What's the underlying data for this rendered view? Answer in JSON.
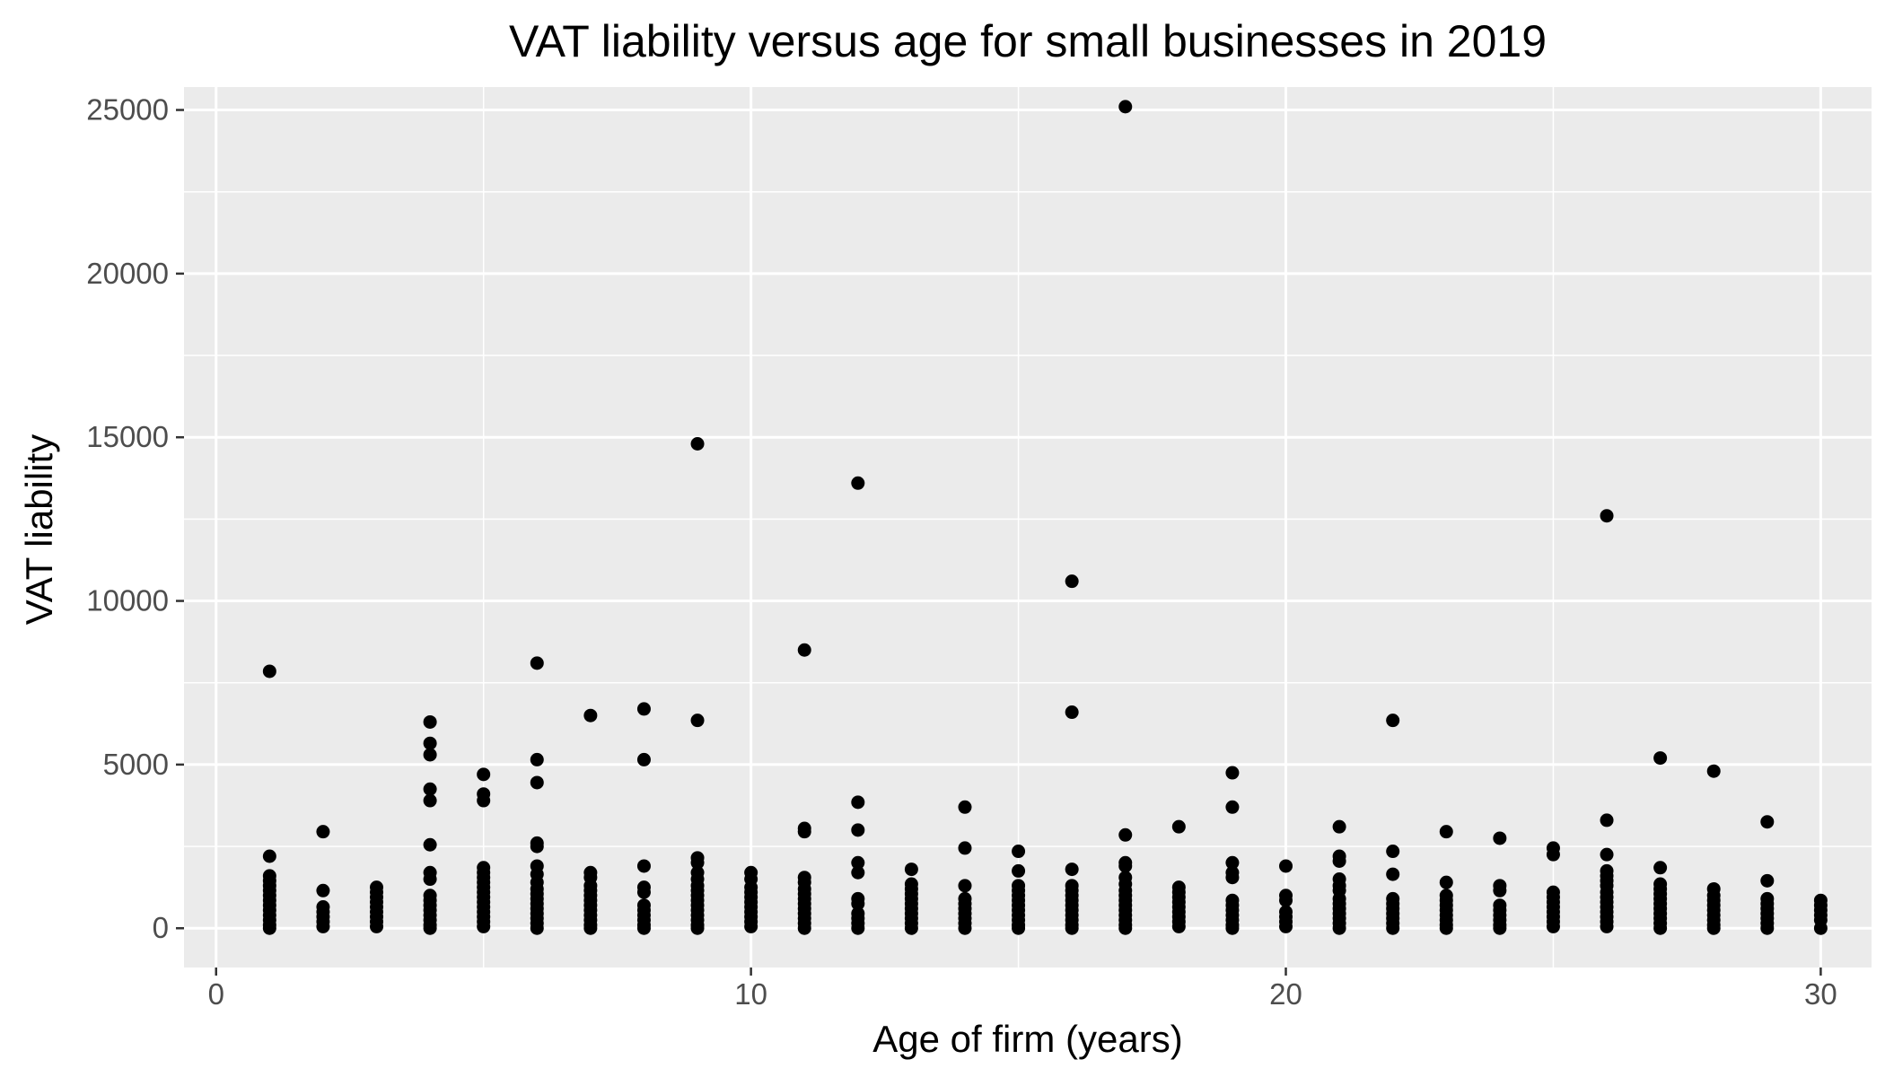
{
  "chart_data": {
    "type": "scatter",
    "title": "VAT liability versus age for small businesses in 2019",
    "xlabel": "Age of firm (years)",
    "ylabel": "VAT liability",
    "xlim": [
      -0.6,
      30.95
    ],
    "ylim": [
      -1200,
      25700
    ],
    "xticks": [
      0,
      10,
      20,
      30
    ],
    "yticks": [
      0,
      5000,
      10000,
      15000,
      20000,
      25000
    ],
    "xtick_labels": [
      "0",
      "10",
      "20",
      "30"
    ],
    "ytick_labels": [
      "0",
      "5000",
      "10000",
      "15000",
      "20000",
      "25000"
    ],
    "grid": true,
    "legend": "none",
    "colors": {
      "panel_background": "#ebebeb",
      "grid": "#ffffff",
      "point": "#000000",
      "tick_label": "#4d4d4d",
      "tick_mark": "#333333"
    },
    "points": [
      {
        "x": 1,
        "y": 7850
      },
      {
        "x": 1,
        "y": 2200
      },
      {
        "x": 1,
        "y": 1600
      },
      {
        "x": 1,
        "y": 1450
      },
      {
        "x": 1,
        "y": 1300
      },
      {
        "x": 1,
        "y": 1150
      },
      {
        "x": 1,
        "y": 1000
      },
      {
        "x": 1,
        "y": 850
      },
      {
        "x": 1,
        "y": 700
      },
      {
        "x": 1,
        "y": 550
      },
      {
        "x": 1,
        "y": 400
      },
      {
        "x": 1,
        "y": 250
      },
      {
        "x": 1,
        "y": 100
      },
      {
        "x": 1,
        "y": 0
      },
      {
        "x": 2,
        "y": 2950
      },
      {
        "x": 2,
        "y": 1150
      },
      {
        "x": 2,
        "y": 650
      },
      {
        "x": 2,
        "y": 500
      },
      {
        "x": 2,
        "y": 350
      },
      {
        "x": 2,
        "y": 200
      },
      {
        "x": 2,
        "y": 50
      },
      {
        "x": 3,
        "y": 1250
      },
      {
        "x": 3,
        "y": 1100
      },
      {
        "x": 3,
        "y": 950
      },
      {
        "x": 3,
        "y": 800
      },
      {
        "x": 3,
        "y": 650
      },
      {
        "x": 3,
        "y": 500
      },
      {
        "x": 3,
        "y": 350
      },
      {
        "x": 3,
        "y": 200
      },
      {
        "x": 3,
        "y": 50
      },
      {
        "x": 4,
        "y": 6300
      },
      {
        "x": 4,
        "y": 5650
      },
      {
        "x": 4,
        "y": 5300
      },
      {
        "x": 4,
        "y": 4250
      },
      {
        "x": 4,
        "y": 3900
      },
      {
        "x": 4,
        "y": 2550
      },
      {
        "x": 4,
        "y": 1700
      },
      {
        "x": 4,
        "y": 1500
      },
      {
        "x": 4,
        "y": 1000
      },
      {
        "x": 4,
        "y": 850
      },
      {
        "x": 4,
        "y": 700
      },
      {
        "x": 4,
        "y": 550
      },
      {
        "x": 4,
        "y": 400
      },
      {
        "x": 4,
        "y": 250
      },
      {
        "x": 4,
        "y": 100
      },
      {
        "x": 4,
        "y": 0
      },
      {
        "x": 5,
        "y": 4700
      },
      {
        "x": 5,
        "y": 4100
      },
      {
        "x": 5,
        "y": 3900
      },
      {
        "x": 5,
        "y": 1850
      },
      {
        "x": 5,
        "y": 1700
      },
      {
        "x": 5,
        "y": 1550
      },
      {
        "x": 5,
        "y": 1400
      },
      {
        "x": 5,
        "y": 1250
      },
      {
        "x": 5,
        "y": 1100
      },
      {
        "x": 5,
        "y": 950
      },
      {
        "x": 5,
        "y": 800
      },
      {
        "x": 5,
        "y": 650
      },
      {
        "x": 5,
        "y": 500
      },
      {
        "x": 5,
        "y": 350
      },
      {
        "x": 5,
        "y": 200
      },
      {
        "x": 5,
        "y": 50
      },
      {
        "x": 6,
        "y": 8100
      },
      {
        "x": 6,
        "y": 5150
      },
      {
        "x": 6,
        "y": 4450
      },
      {
        "x": 6,
        "y": 2600
      },
      {
        "x": 6,
        "y": 2500
      },
      {
        "x": 6,
        "y": 1900
      },
      {
        "x": 6,
        "y": 1650
      },
      {
        "x": 6,
        "y": 1400
      },
      {
        "x": 6,
        "y": 1200
      },
      {
        "x": 6,
        "y": 1050
      },
      {
        "x": 6,
        "y": 900
      },
      {
        "x": 6,
        "y": 750
      },
      {
        "x": 6,
        "y": 600
      },
      {
        "x": 6,
        "y": 450
      },
      {
        "x": 6,
        "y": 300
      },
      {
        "x": 6,
        "y": 150
      },
      {
        "x": 6,
        "y": 0
      },
      {
        "x": 7,
        "y": 6500
      },
      {
        "x": 7,
        "y": 1700
      },
      {
        "x": 7,
        "y": 1550
      },
      {
        "x": 7,
        "y": 1300
      },
      {
        "x": 7,
        "y": 1150
      },
      {
        "x": 7,
        "y": 1000
      },
      {
        "x": 7,
        "y": 850
      },
      {
        "x": 7,
        "y": 700
      },
      {
        "x": 7,
        "y": 550
      },
      {
        "x": 7,
        "y": 400
      },
      {
        "x": 7,
        "y": 250
      },
      {
        "x": 7,
        "y": 100
      },
      {
        "x": 7,
        "y": 0
      },
      {
        "x": 8,
        "y": 6700
      },
      {
        "x": 8,
        "y": 5150
      },
      {
        "x": 8,
        "y": 1900
      },
      {
        "x": 8,
        "y": 1250
      },
      {
        "x": 8,
        "y": 1100
      },
      {
        "x": 8,
        "y": 700
      },
      {
        "x": 8,
        "y": 550
      },
      {
        "x": 8,
        "y": 400
      },
      {
        "x": 8,
        "y": 250
      },
      {
        "x": 8,
        "y": 100
      },
      {
        "x": 8,
        "y": 0
      },
      {
        "x": 9,
        "y": 14800
      },
      {
        "x": 9,
        "y": 6350
      },
      {
        "x": 9,
        "y": 2150
      },
      {
        "x": 9,
        "y": 2000
      },
      {
        "x": 9,
        "y": 1700
      },
      {
        "x": 9,
        "y": 1500
      },
      {
        "x": 9,
        "y": 1300
      },
      {
        "x": 9,
        "y": 1150
      },
      {
        "x": 9,
        "y": 1000
      },
      {
        "x": 9,
        "y": 850
      },
      {
        "x": 9,
        "y": 700
      },
      {
        "x": 9,
        "y": 550
      },
      {
        "x": 9,
        "y": 400
      },
      {
        "x": 9,
        "y": 250
      },
      {
        "x": 9,
        "y": 100
      },
      {
        "x": 9,
        "y": 0
      },
      {
        "x": 10,
        "y": 1700
      },
      {
        "x": 10,
        "y": 1500
      },
      {
        "x": 10,
        "y": 1250
      },
      {
        "x": 10,
        "y": 1100
      },
      {
        "x": 10,
        "y": 950
      },
      {
        "x": 10,
        "y": 800
      },
      {
        "x": 10,
        "y": 650
      },
      {
        "x": 10,
        "y": 500
      },
      {
        "x": 10,
        "y": 350
      },
      {
        "x": 10,
        "y": 200
      },
      {
        "x": 10,
        "y": 50
      },
      {
        "x": 11,
        "y": 8500
      },
      {
        "x": 11,
        "y": 3050
      },
      {
        "x": 11,
        "y": 2950
      },
      {
        "x": 11,
        "y": 1550
      },
      {
        "x": 11,
        "y": 1400
      },
      {
        "x": 11,
        "y": 1200
      },
      {
        "x": 11,
        "y": 1050
      },
      {
        "x": 11,
        "y": 900
      },
      {
        "x": 11,
        "y": 750
      },
      {
        "x": 11,
        "y": 600
      },
      {
        "x": 11,
        "y": 450
      },
      {
        "x": 11,
        "y": 300
      },
      {
        "x": 11,
        "y": 150
      },
      {
        "x": 11,
        "y": 0
      },
      {
        "x": 12,
        "y": 13600
      },
      {
        "x": 12,
        "y": 3850
      },
      {
        "x": 12,
        "y": 3000
      },
      {
        "x": 12,
        "y": 2000
      },
      {
        "x": 12,
        "y": 1700
      },
      {
        "x": 12,
        "y": 900
      },
      {
        "x": 12,
        "y": 750
      },
      {
        "x": 12,
        "y": 450
      },
      {
        "x": 12,
        "y": 300
      },
      {
        "x": 12,
        "y": 150
      },
      {
        "x": 12,
        "y": 0
      },
      {
        "x": 13,
        "y": 1800
      },
      {
        "x": 13,
        "y": 1350
      },
      {
        "x": 13,
        "y": 1200
      },
      {
        "x": 13,
        "y": 1050
      },
      {
        "x": 13,
        "y": 900
      },
      {
        "x": 13,
        "y": 750
      },
      {
        "x": 13,
        "y": 600
      },
      {
        "x": 13,
        "y": 450
      },
      {
        "x": 13,
        "y": 300
      },
      {
        "x": 13,
        "y": 150
      },
      {
        "x": 13,
        "y": 0
      },
      {
        "x": 14,
        "y": 3700
      },
      {
        "x": 14,
        "y": 2450
      },
      {
        "x": 14,
        "y": 1300
      },
      {
        "x": 14,
        "y": 900
      },
      {
        "x": 14,
        "y": 750
      },
      {
        "x": 14,
        "y": 600
      },
      {
        "x": 14,
        "y": 450
      },
      {
        "x": 14,
        "y": 300
      },
      {
        "x": 14,
        "y": 150
      },
      {
        "x": 14,
        "y": 0
      },
      {
        "x": 15,
        "y": 2350
      },
      {
        "x": 15,
        "y": 1750
      },
      {
        "x": 15,
        "y": 1300
      },
      {
        "x": 15,
        "y": 1150
      },
      {
        "x": 15,
        "y": 1000
      },
      {
        "x": 15,
        "y": 850
      },
      {
        "x": 15,
        "y": 700
      },
      {
        "x": 15,
        "y": 550
      },
      {
        "x": 15,
        "y": 400
      },
      {
        "x": 15,
        "y": 250
      },
      {
        "x": 15,
        "y": 100
      },
      {
        "x": 15,
        "y": 0
      },
      {
        "x": 16,
        "y": 10600
      },
      {
        "x": 16,
        "y": 6600
      },
      {
        "x": 16,
        "y": 1800
      },
      {
        "x": 16,
        "y": 1300
      },
      {
        "x": 16,
        "y": 1150
      },
      {
        "x": 16,
        "y": 1000
      },
      {
        "x": 16,
        "y": 850
      },
      {
        "x": 16,
        "y": 700
      },
      {
        "x": 16,
        "y": 550
      },
      {
        "x": 16,
        "y": 400
      },
      {
        "x": 16,
        "y": 250
      },
      {
        "x": 16,
        "y": 100
      },
      {
        "x": 16,
        "y": 0
      },
      {
        "x": 17,
        "y": 25100
      },
      {
        "x": 17,
        "y": 2850
      },
      {
        "x": 17,
        "y": 2000
      },
      {
        "x": 17,
        "y": 1900
      },
      {
        "x": 17,
        "y": 1550
      },
      {
        "x": 17,
        "y": 1350
      },
      {
        "x": 17,
        "y": 1150
      },
      {
        "x": 17,
        "y": 1000
      },
      {
        "x": 17,
        "y": 850
      },
      {
        "x": 17,
        "y": 700
      },
      {
        "x": 17,
        "y": 550
      },
      {
        "x": 17,
        "y": 400
      },
      {
        "x": 17,
        "y": 250
      },
      {
        "x": 17,
        "y": 100
      },
      {
        "x": 17,
        "y": 0
      },
      {
        "x": 18,
        "y": 3100
      },
      {
        "x": 18,
        "y": 1250
      },
      {
        "x": 18,
        "y": 1100
      },
      {
        "x": 18,
        "y": 950
      },
      {
        "x": 18,
        "y": 800
      },
      {
        "x": 18,
        "y": 650
      },
      {
        "x": 18,
        "y": 500
      },
      {
        "x": 18,
        "y": 350
      },
      {
        "x": 18,
        "y": 200
      },
      {
        "x": 18,
        "y": 50
      },
      {
        "x": 19,
        "y": 4750
      },
      {
        "x": 19,
        "y": 3700
      },
      {
        "x": 19,
        "y": 2000
      },
      {
        "x": 19,
        "y": 1700
      },
      {
        "x": 19,
        "y": 1550
      },
      {
        "x": 19,
        "y": 850
      },
      {
        "x": 19,
        "y": 700
      },
      {
        "x": 19,
        "y": 550
      },
      {
        "x": 19,
        "y": 400
      },
      {
        "x": 19,
        "y": 250
      },
      {
        "x": 19,
        "y": 100
      },
      {
        "x": 19,
        "y": 0
      },
      {
        "x": 20,
        "y": 1900
      },
      {
        "x": 20,
        "y": 1000
      },
      {
        "x": 20,
        "y": 850
      },
      {
        "x": 20,
        "y": 500
      },
      {
        "x": 20,
        "y": 350
      },
      {
        "x": 20,
        "y": 200
      },
      {
        "x": 20,
        "y": 50
      },
      {
        "x": 21,
        "y": 3100
      },
      {
        "x": 21,
        "y": 2200
      },
      {
        "x": 21,
        "y": 2050
      },
      {
        "x": 21,
        "y": 1500
      },
      {
        "x": 21,
        "y": 1300
      },
      {
        "x": 21,
        "y": 1150
      },
      {
        "x": 21,
        "y": 900
      },
      {
        "x": 21,
        "y": 750
      },
      {
        "x": 21,
        "y": 600
      },
      {
        "x": 21,
        "y": 450
      },
      {
        "x": 21,
        "y": 300
      },
      {
        "x": 21,
        "y": 150
      },
      {
        "x": 21,
        "y": 0
      },
      {
        "x": 22,
        "y": 6350
      },
      {
        "x": 22,
        "y": 2350
      },
      {
        "x": 22,
        "y": 1650
      },
      {
        "x": 22,
        "y": 900
      },
      {
        "x": 22,
        "y": 750
      },
      {
        "x": 22,
        "y": 600
      },
      {
        "x": 22,
        "y": 450
      },
      {
        "x": 22,
        "y": 300
      },
      {
        "x": 22,
        "y": 150
      },
      {
        "x": 22,
        "y": 0
      },
      {
        "x": 23,
        "y": 2950
      },
      {
        "x": 23,
        "y": 1400
      },
      {
        "x": 23,
        "y": 1000
      },
      {
        "x": 23,
        "y": 850
      },
      {
        "x": 23,
        "y": 700
      },
      {
        "x": 23,
        "y": 550
      },
      {
        "x": 23,
        "y": 400
      },
      {
        "x": 23,
        "y": 250
      },
      {
        "x": 23,
        "y": 100
      },
      {
        "x": 23,
        "y": 0
      },
      {
        "x": 24,
        "y": 2750
      },
      {
        "x": 24,
        "y": 1300
      },
      {
        "x": 24,
        "y": 1150
      },
      {
        "x": 24,
        "y": 700
      },
      {
        "x": 24,
        "y": 550
      },
      {
        "x": 24,
        "y": 400
      },
      {
        "x": 24,
        "y": 250
      },
      {
        "x": 24,
        "y": 100
      },
      {
        "x": 24,
        "y": 0
      },
      {
        "x": 25,
        "y": 2450
      },
      {
        "x": 25,
        "y": 2250
      },
      {
        "x": 25,
        "y": 1100
      },
      {
        "x": 25,
        "y": 950
      },
      {
        "x": 25,
        "y": 800
      },
      {
        "x": 25,
        "y": 650
      },
      {
        "x": 25,
        "y": 500
      },
      {
        "x": 25,
        "y": 350
      },
      {
        "x": 25,
        "y": 200
      },
      {
        "x": 25,
        "y": 50
      },
      {
        "x": 26,
        "y": 12600
      },
      {
        "x": 26,
        "y": 3300
      },
      {
        "x": 26,
        "y": 2250
      },
      {
        "x": 26,
        "y": 1750
      },
      {
        "x": 26,
        "y": 1600
      },
      {
        "x": 26,
        "y": 1450
      },
      {
        "x": 26,
        "y": 1300
      },
      {
        "x": 26,
        "y": 1100
      },
      {
        "x": 26,
        "y": 950
      },
      {
        "x": 26,
        "y": 800
      },
      {
        "x": 26,
        "y": 650
      },
      {
        "x": 26,
        "y": 500
      },
      {
        "x": 26,
        "y": 350
      },
      {
        "x": 26,
        "y": 200
      },
      {
        "x": 26,
        "y": 50
      },
      {
        "x": 27,
        "y": 5200
      },
      {
        "x": 27,
        "y": 1850
      },
      {
        "x": 27,
        "y": 1350
      },
      {
        "x": 27,
        "y": 1200
      },
      {
        "x": 27,
        "y": 1050
      },
      {
        "x": 27,
        "y": 900
      },
      {
        "x": 27,
        "y": 750
      },
      {
        "x": 27,
        "y": 600
      },
      {
        "x": 27,
        "y": 450
      },
      {
        "x": 27,
        "y": 300
      },
      {
        "x": 27,
        "y": 150
      },
      {
        "x": 27,
        "y": 0
      },
      {
        "x": 28,
        "y": 4800
      },
      {
        "x": 28,
        "y": 1200
      },
      {
        "x": 28,
        "y": 1000
      },
      {
        "x": 28,
        "y": 850
      },
      {
        "x": 28,
        "y": 700
      },
      {
        "x": 28,
        "y": 550
      },
      {
        "x": 28,
        "y": 400
      },
      {
        "x": 28,
        "y": 250
      },
      {
        "x": 28,
        "y": 100
      },
      {
        "x": 28,
        "y": 0
      },
      {
        "x": 29,
        "y": 3250
      },
      {
        "x": 29,
        "y": 1450
      },
      {
        "x": 29,
        "y": 900
      },
      {
        "x": 29,
        "y": 750
      },
      {
        "x": 29,
        "y": 600
      },
      {
        "x": 29,
        "y": 450
      },
      {
        "x": 29,
        "y": 300
      },
      {
        "x": 29,
        "y": 150
      },
      {
        "x": 29,
        "y": 0
      },
      {
        "x": 30,
        "y": 850
      },
      {
        "x": 30,
        "y": 700
      },
      {
        "x": 30,
        "y": 550
      },
      {
        "x": 30,
        "y": 400
      },
      {
        "x": 30,
        "y": 250
      },
      {
        "x": 30,
        "y": 0
      }
    ]
  }
}
